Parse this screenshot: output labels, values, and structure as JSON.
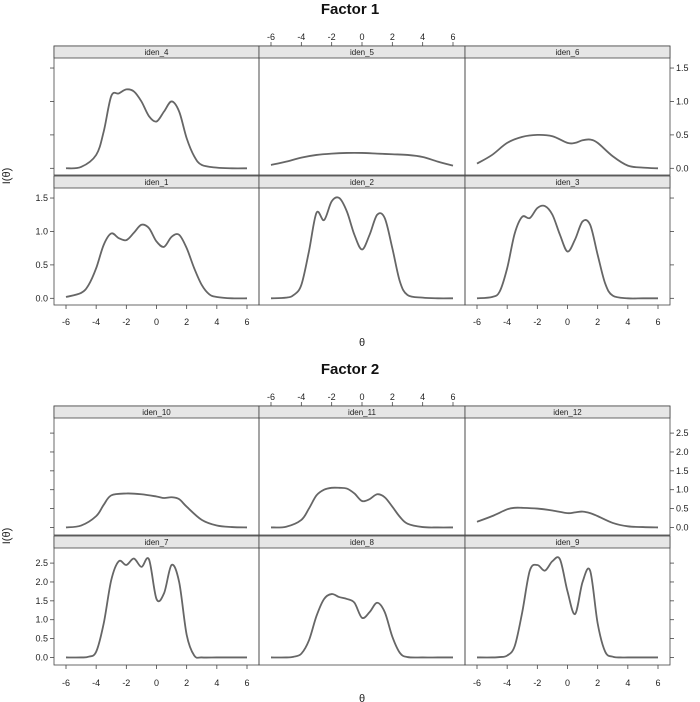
{
  "chart_data": [
    {
      "type": "line",
      "title": "Factor 1",
      "xlabel": "θ",
      "ylabel": "I(θ)",
      "xlim": [
        -6,
        6
      ],
      "ylim": [
        -0.1,
        1.65
      ],
      "xticks": [
        -6,
        -4,
        -2,
        0,
        2,
        4,
        6
      ],
      "yticks": [
        0.0,
        0.5,
        1.0,
        1.5
      ],
      "ytick_labels": [
        "0.0",
        "0.5",
        "1.0",
        "1.5"
      ],
      "series": [
        {
          "name": "iden_4",
          "x": [
            -6,
            -5,
            -4,
            -3.5,
            -3,
            -2.5,
            -2,
            -1.5,
            -1,
            -0.5,
            0,
            0.5,
            1,
            1.5,
            2,
            2.5,
            3,
            4,
            5,
            6
          ],
          "y": [
            0.0,
            0.02,
            0.2,
            0.55,
            1.08,
            1.12,
            1.18,
            1.15,
            1.0,
            0.78,
            0.7,
            0.85,
            1.0,
            0.85,
            0.45,
            0.18,
            0.05,
            0.01,
            0.0,
            0.0
          ]
        },
        {
          "name": "iden_5",
          "x": [
            -6,
            -5,
            -4,
            -3,
            -2,
            -1,
            0,
            1,
            2,
            3,
            4,
            5,
            6
          ],
          "y": [
            0.05,
            0.1,
            0.16,
            0.2,
            0.22,
            0.23,
            0.23,
            0.22,
            0.21,
            0.2,
            0.17,
            0.1,
            0.04
          ]
        },
        {
          "name": "iden_6",
          "x": [
            -6,
            -5,
            -4,
            -3,
            -2,
            -1,
            0,
            0.5,
            1,
            1.5,
            2,
            3,
            4,
            5,
            6
          ],
          "y": [
            0.07,
            0.2,
            0.38,
            0.47,
            0.5,
            0.48,
            0.38,
            0.38,
            0.42,
            0.43,
            0.38,
            0.18,
            0.04,
            0.01,
            0.0
          ]
        },
        {
          "name": "iden_1",
          "x": [
            -6,
            -5,
            -4.5,
            -4,
            -3.5,
            -3,
            -2.5,
            -2,
            -1.5,
            -1,
            -0.5,
            0,
            0.5,
            1,
            1.5,
            2,
            2.5,
            3,
            3.5,
            4,
            5,
            6
          ],
          "y": [
            0.02,
            0.08,
            0.2,
            0.45,
            0.8,
            0.97,
            0.9,
            0.87,
            0.98,
            1.1,
            1.05,
            0.85,
            0.77,
            0.92,
            0.95,
            0.75,
            0.45,
            0.2,
            0.06,
            0.02,
            0.0,
            0.0
          ]
        },
        {
          "name": "iden_2",
          "x": [
            -6,
            -5,
            -4.5,
            -4,
            -3.5,
            -3,
            -2.5,
            -2,
            -1.5,
            -1,
            -0.5,
            0,
            0.5,
            1,
            1.5,
            2,
            2.5,
            3,
            4,
            5,
            6
          ],
          "y": [
            0.0,
            0.01,
            0.05,
            0.2,
            0.7,
            1.28,
            1.17,
            1.45,
            1.5,
            1.3,
            0.95,
            0.73,
            0.95,
            1.25,
            1.2,
            0.75,
            0.25,
            0.05,
            0.01,
            0.0,
            0.0
          ]
        },
        {
          "name": "iden_3",
          "x": [
            -6,
            -5,
            -4.5,
            -4,
            -3.5,
            -3,
            -2.5,
            -2,
            -1.5,
            -1,
            -0.5,
            0,
            0.5,
            1,
            1.5,
            2,
            2.5,
            3,
            4,
            5,
            6
          ],
          "y": [
            0.0,
            0.02,
            0.1,
            0.45,
            0.97,
            1.22,
            1.2,
            1.35,
            1.38,
            1.25,
            0.95,
            0.7,
            0.88,
            1.15,
            1.1,
            0.65,
            0.22,
            0.04,
            0.0,
            0.0,
            0.0
          ]
        }
      ]
    },
    {
      "type": "line",
      "title": "Factor 2",
      "xlabel": "θ",
      "ylabel": "I(θ)",
      "xlim": [
        -6,
        6
      ],
      "ylim": [
        -0.2,
        2.9
      ],
      "xticks": [
        -6,
        -4,
        -2,
        0,
        2,
        4,
        6
      ],
      "yticks": [
        0.0,
        0.5,
        1.0,
        1.5,
        2.0,
        2.5
      ],
      "ytick_labels": [
        "0.0",
        "0.5",
        "1.0",
        "1.5",
        "2.0",
        "2.5"
      ],
      "series": [
        {
          "name": "iden_10",
          "x": [
            -6,
            -5,
            -4,
            -3.5,
            -3,
            -2,
            -1,
            0,
            0.5,
            1,
            1.5,
            2,
            3,
            4,
            5,
            6
          ],
          "y": [
            0.0,
            0.05,
            0.3,
            0.6,
            0.85,
            0.9,
            0.88,
            0.82,
            0.78,
            0.8,
            0.75,
            0.55,
            0.2,
            0.05,
            0.01,
            0.0
          ]
        },
        {
          "name": "iden_11",
          "x": [
            -6,
            -5,
            -4,
            -3.5,
            -3,
            -2.5,
            -2,
            -1.5,
            -1,
            -0.5,
            0,
            0.5,
            1,
            1.5,
            2,
            2.5,
            3,
            4,
            5,
            6
          ],
          "y": [
            0.0,
            0.02,
            0.2,
            0.5,
            0.85,
            1.0,
            1.05,
            1.05,
            1.03,
            0.9,
            0.7,
            0.75,
            0.88,
            0.8,
            0.55,
            0.28,
            0.1,
            0.01,
            0.0,
            0.0
          ]
        },
        {
          "name": "iden_12",
          "x": [
            -6,
            -5,
            -4,
            -3.5,
            -3,
            -2,
            -1,
            0,
            0.5,
            1,
            1.5,
            2,
            3,
            4,
            5,
            6
          ],
          "y": [
            0.15,
            0.3,
            0.48,
            0.52,
            0.52,
            0.5,
            0.45,
            0.38,
            0.4,
            0.42,
            0.38,
            0.3,
            0.12,
            0.03,
            0.01,
            0.0
          ]
        },
        {
          "name": "iden_7",
          "x": [
            -6,
            -5,
            -4.5,
            -4,
            -3.5,
            -3,
            -2.5,
            -2,
            -1.5,
            -1,
            -0.5,
            0,
            0.5,
            1,
            1.5,
            2,
            2.5,
            3,
            4,
            5,
            6
          ],
          "y": [
            0.0,
            0.0,
            0.02,
            0.15,
            0.9,
            2.05,
            2.55,
            2.45,
            2.62,
            2.4,
            2.6,
            1.55,
            1.7,
            2.45,
            2.0,
            0.6,
            0.05,
            0.0,
            0.0,
            0.0,
            0.0
          ]
        },
        {
          "name": "iden_8",
          "x": [
            -6,
            -5,
            -4.5,
            -4,
            -3.5,
            -3,
            -2.5,
            -2,
            -1.5,
            -1,
            -0.5,
            0,
            0.5,
            1,
            1.5,
            2,
            2.5,
            3,
            4,
            5,
            6
          ],
          "y": [
            0.0,
            0.0,
            0.02,
            0.1,
            0.45,
            1.1,
            1.55,
            1.68,
            1.6,
            1.55,
            1.45,
            1.05,
            1.2,
            1.45,
            1.2,
            0.55,
            0.12,
            0.01,
            0.0,
            0.0,
            0.0
          ]
        },
        {
          "name": "iden_9",
          "x": [
            -6,
            -5,
            -4.5,
            -4,
            -3.5,
            -3,
            -2.5,
            -2,
            -1.5,
            -1,
            -0.5,
            0,
            0.5,
            1,
            1.5,
            2,
            2.5,
            3,
            3.5,
            4,
            5,
            6
          ],
          "y": [
            0.0,
            0.0,
            0.01,
            0.05,
            0.3,
            1.2,
            2.3,
            2.45,
            2.3,
            2.55,
            2.6,
            1.75,
            1.15,
            2.0,
            2.3,
            0.9,
            0.15,
            0.02,
            0.0,
            0.0,
            0.0,
            0.0
          ]
        }
      ]
    }
  ]
}
